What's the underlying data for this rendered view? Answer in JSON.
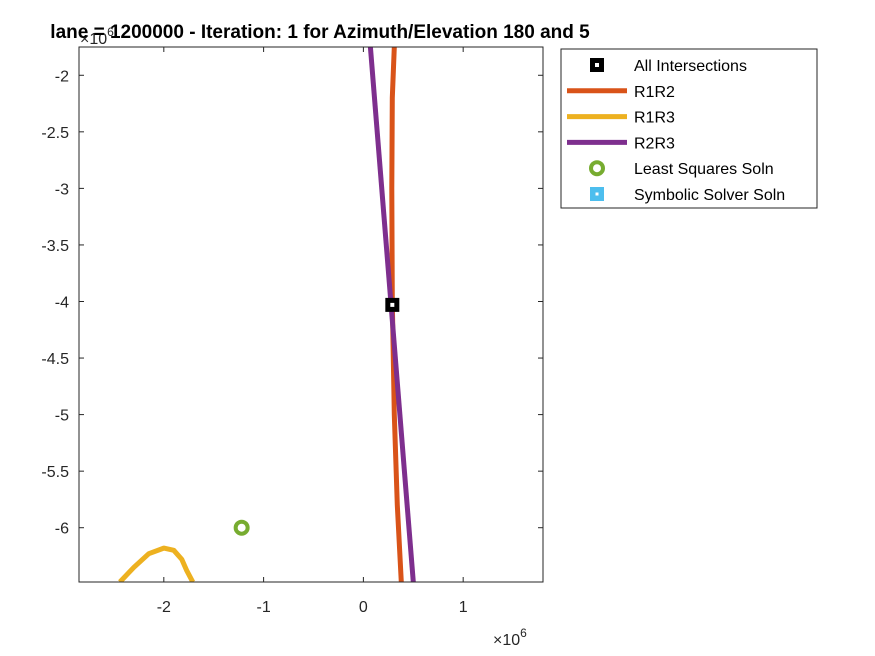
{
  "chart_data": {
    "type": "line",
    "title": "lane = 1200000 - Iteration: 1 for Azimuth/Elevation 180 and 5",
    "xlabel": "",
    "ylabel": "",
    "x_exponent_base": "×10",
    "x_exponent_power": "6",
    "y_exponent_base": "×10",
    "y_exponent_power": "6",
    "xlim": [
      -2.85,
      1.8
    ],
    "ylim": [
      -6.48,
      -1.75
    ],
    "xticks": [
      -2,
      -1,
      0,
      1
    ],
    "xtick_labels": [
      "-2",
      "-1",
      "0",
      "1"
    ],
    "yticks": [
      -2,
      -2.5,
      -3,
      -3.5,
      -4,
      -4.5,
      -5,
      -5.5,
      -6
    ],
    "ytick_labels": [
      "-2",
      "-2.5",
      "-3",
      "-3.5",
      "-4",
      "-4.5",
      "-5",
      "-5.5",
      "-6"
    ],
    "grid": false,
    "legend_position": "outside-top-right",
    "series": [
      {
        "name": "All Intersections",
        "kind": "marker-square",
        "color": "#000000",
        "points": [
          [
            0.29,
            -4.03
          ]
        ]
      },
      {
        "name": "R1R2",
        "kind": "line",
        "color": "#D95319",
        "points": [
          [
            0.31,
            -1.75
          ],
          [
            0.29,
            -2.2
          ],
          [
            0.285,
            -3.0
          ],
          [
            0.29,
            -4.0
          ],
          [
            0.31,
            -5.0
          ],
          [
            0.34,
            -5.8
          ],
          [
            0.38,
            -6.48
          ]
        ]
      },
      {
        "name": "R1R3",
        "kind": "line",
        "color": "#EDB120",
        "points": [
          [
            -2.44,
            -6.48
          ],
          [
            -2.3,
            -6.35
          ],
          [
            -2.15,
            -6.23
          ],
          [
            -2.0,
            -6.18
          ],
          [
            -1.9,
            -6.2
          ],
          [
            -1.82,
            -6.28
          ],
          [
            -1.77,
            -6.38
          ],
          [
            -1.71,
            -6.48
          ]
        ]
      },
      {
        "name": "R2R3",
        "kind": "line",
        "color": "#7E2F8E",
        "points": [
          [
            0.07,
            -1.75
          ],
          [
            0.5,
            -6.48
          ]
        ]
      },
      {
        "name": "Least Squares Soln",
        "kind": "marker-circle",
        "color": "#77AC30",
        "points": [
          [
            -1.22,
            -6.0
          ]
        ]
      },
      {
        "name": "Symbolic Solver Soln",
        "kind": "marker-square-small",
        "color": "#4DBEEE",
        "points": []
      }
    ]
  }
}
